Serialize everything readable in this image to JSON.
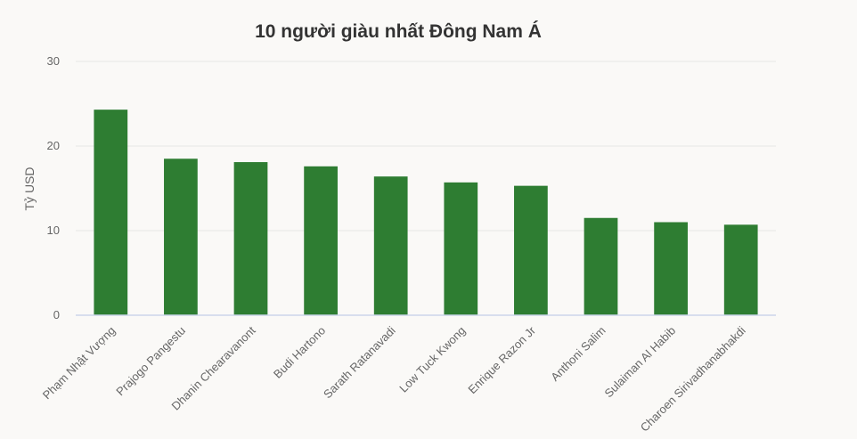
{
  "chart_data": {
    "type": "bar",
    "title": "10 người giàu nhất Đông Nam Á",
    "xlabel": "",
    "ylabel": "Tỷ USD",
    "ylim": [
      0,
      30
    ],
    "yticks": [
      0,
      10,
      20,
      30
    ],
    "grid": true,
    "categories": [
      "Phạm Nhật Vượng",
      "Prajogo Pangestu",
      "Dhanin Chearavanont",
      "Budi Hartono",
      "Sarath Ratanavadi",
      "Low Tuck Kwong",
      "Enrique Razon Jr",
      "Anthoni Salim",
      "Sulaiman Al Habib",
      "Charoen Sirivadhanabhakdi"
    ],
    "values": [
      24.3,
      18.5,
      18.1,
      17.6,
      16.4,
      15.7,
      15.3,
      11.5,
      11.0,
      10.7
    ],
    "bar_color": "#2e7d32"
  }
}
